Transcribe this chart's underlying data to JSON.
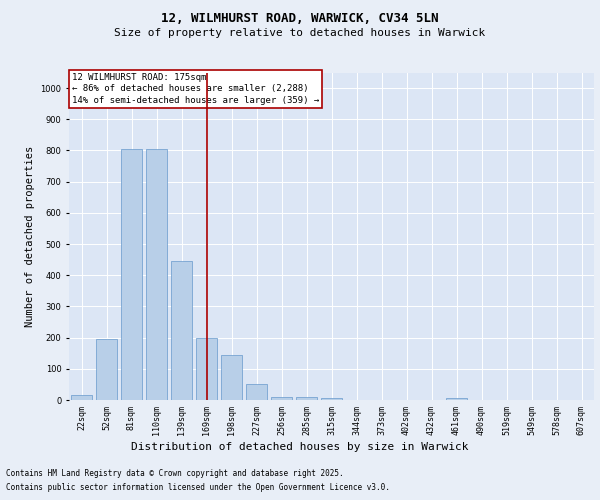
{
  "title_line1": "12, WILMHURST ROAD, WARWICK, CV34 5LN",
  "title_line2": "Size of property relative to detached houses in Warwick",
  "xlabel": "Distribution of detached houses by size in Warwick",
  "ylabel": "Number of detached properties",
  "categories": [
    "22sqm",
    "52sqm",
    "81sqm",
    "110sqm",
    "139sqm",
    "169sqm",
    "198sqm",
    "227sqm",
    "256sqm",
    "285sqm",
    "315sqm",
    "344sqm",
    "373sqm",
    "402sqm",
    "432sqm",
    "461sqm",
    "490sqm",
    "519sqm",
    "549sqm",
    "578sqm",
    "607sqm"
  ],
  "values": [
    15,
    195,
    805,
    805,
    445,
    200,
    145,
    50,
    10,
    10,
    5,
    0,
    0,
    0,
    0,
    8,
    0,
    0,
    0,
    0,
    0
  ],
  "bar_color": "#b8cfe8",
  "bar_edgecolor": "#6699cc",
  "vline_x": 5,
  "vline_color": "#aa0000",
  "annotation_title": "12 WILMHURST ROAD: 175sqm",
  "annotation_line1": "← 86% of detached houses are smaller (2,288)",
  "annotation_line2": "14% of semi-detached houses are larger (359) →",
  "annotation_box_color": "#aa0000",
  "ylim": [
    0,
    1050
  ],
  "yticks": [
    0,
    100,
    200,
    300,
    400,
    500,
    600,
    700,
    800,
    900,
    1000
  ],
  "background_color": "#e8eef7",
  "plot_bg_color": "#dce6f5",
  "footer_line1": "Contains HM Land Registry data © Crown copyright and database right 2025.",
  "footer_line2": "Contains public sector information licensed under the Open Government Licence v3.0.",
  "title_fontsize": 9,
  "subtitle_fontsize": 8,
  "annotation_fontsize": 6.5,
  "ylabel_fontsize": 7.5,
  "xlabel_fontsize": 8,
  "tick_fontsize": 6,
  "footer_fontsize": 5.5,
  "grid_color": "#ffffff",
  "grid_linewidth": 0.7
}
